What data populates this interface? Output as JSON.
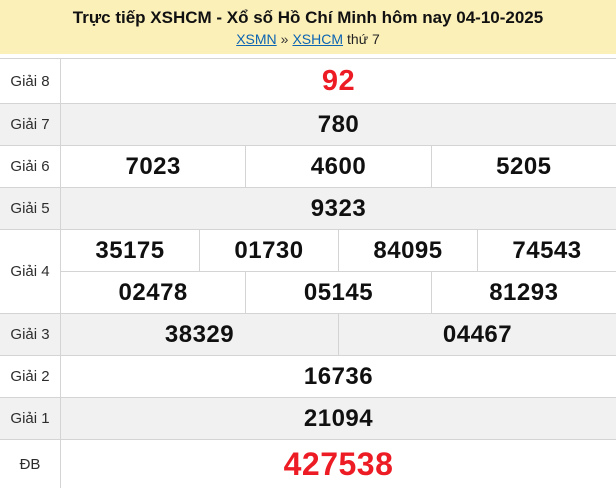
{
  "header": {
    "title": "Trực tiếp XSHCM - Xổ số Hồ Chí Minh hôm nay 04-10-2025",
    "breadcrumb": {
      "link1": "XSMN",
      "separator": "»",
      "link2": "XSHCM",
      "suffix": "thứ 7"
    }
  },
  "table": {
    "rows": [
      {
        "key": "giai-8",
        "label": "Giải 8",
        "emphasis": true,
        "groups": [
          [
            "92"
          ]
        ]
      },
      {
        "key": "giai-7",
        "label": "Giải 7",
        "emphasis": false,
        "groups": [
          [
            "780"
          ]
        ]
      },
      {
        "key": "giai-6",
        "label": "Giải 6",
        "emphasis": false,
        "groups": [
          [
            "7023",
            "4600",
            "5205"
          ]
        ]
      },
      {
        "key": "giai-5",
        "label": "Giải 5",
        "emphasis": false,
        "groups": [
          [
            "9323"
          ]
        ]
      },
      {
        "key": "giai-4",
        "label": "Giải 4",
        "emphasis": false,
        "groups": [
          [
            "35175",
            "01730",
            "84095",
            "74543"
          ],
          [
            "02478",
            "05145",
            "81293"
          ]
        ]
      },
      {
        "key": "giai-3",
        "label": "Giải 3",
        "emphasis": false,
        "groups": [
          [
            "38329",
            "04467"
          ]
        ]
      },
      {
        "key": "giai-2",
        "label": "Giải 2",
        "emphasis": false,
        "groups": [
          [
            "16736"
          ]
        ]
      },
      {
        "key": "giai-1",
        "label": "Giải 1",
        "emphasis": false,
        "groups": [
          [
            "21094"
          ]
        ]
      },
      {
        "key": "db",
        "label": "ĐB",
        "emphasis": true,
        "groups": [
          [
            "427538"
          ]
        ]
      }
    ]
  },
  "colors": {
    "header_bg": "#fcf0b9",
    "link_color": "#0c64b2",
    "accent_red": "#ed1c24",
    "alt_row_bg": "#f1f1f1",
    "border_color": "#d4d4d4"
  }
}
